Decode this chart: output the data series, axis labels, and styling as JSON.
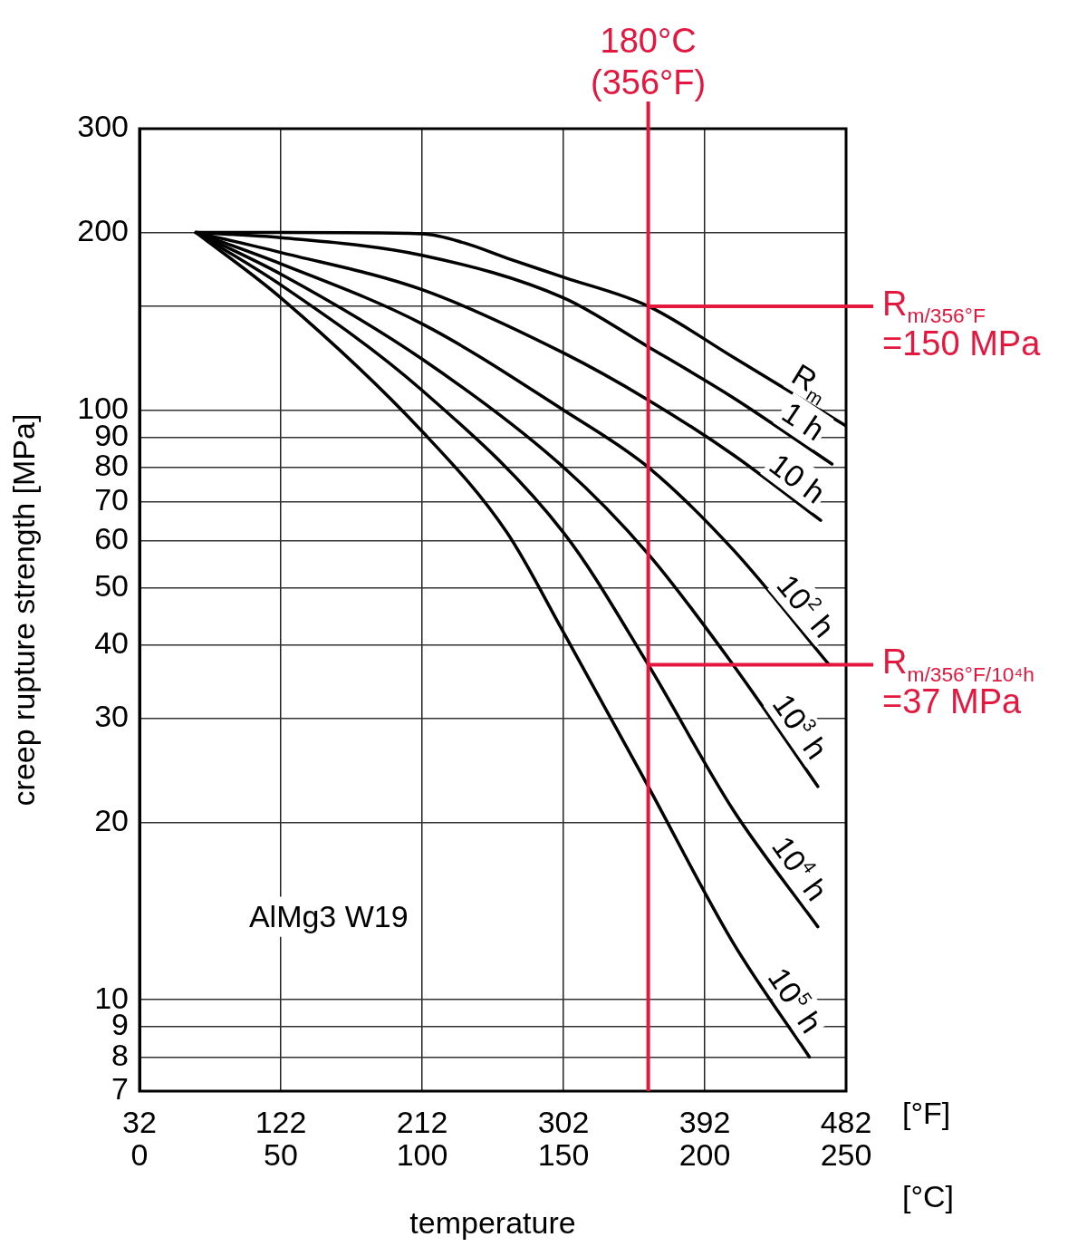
{
  "chart_data": {
    "type": "line",
    "xlabel": "temperature",
    "ylabel": "creep rupture strength [MPa]",
    "x2label": "[°F]",
    "annotations": [
      "AlMg3 W19",
      "[°C]"
    ],
    "xlim": [
      0,
      250
    ],
    "xticks": [
      0,
      50,
      100,
      150,
      200,
      250
    ],
    "x2lim": [
      32,
      482
    ],
    "x2ticks": [
      32,
      122,
      212,
      302,
      392,
      482
    ],
    "ylim": [
      7,
      300
    ],
    "log": "y",
    "yticks": [
      7,
      8,
      9,
      10,
      20,
      30,
      40,
      50,
      60,
      70,
      80,
      90,
      100,
      {
        "value": 150,
        "label": null
      },
      200,
      300
    ],
    "grid": true,
    "legend": false,
    "marker": "none",
    "line_style": "solid",
    "series": [
      {
        "name": "R$_{m}$",
        "color": "#000000",
        "x": [
          20,
          50,
          100,
          115,
          130,
          150,
          180,
          210,
          250
        ],
        "values": [
          200,
          200,
          199,
          192,
          181,
          168,
          150,
          123,
          94
        ]
      },
      {
        "name": "1 h",
        "color": "#000000",
        "x": [
          20,
          50,
          100,
          150,
          180,
          210,
          245
        ],
        "values": [
          200,
          196,
          183,
          155,
          128,
          105,
          81
        ]
      },
      {
        "name": "10 h",
        "color": "#000000",
        "x": [
          20,
          50,
          100,
          150,
          180,
          210,
          241
        ],
        "values": [
          200,
          185,
          160,
          125,
          104,
          84,
          65
        ]
      },
      {
        "name": "10$^{2}$ h",
        "color": "#000000",
        "x": [
          20,
          50,
          100,
          150,
          180,
          210,
          244
        ],
        "values": [
          200,
          177,
          140,
          100,
          80,
          58,
          37
        ]
      },
      {
        "name": "10$^{3}$ h",
        "color": "#000000",
        "x": [
          20,
          50,
          100,
          150,
          180,
          210,
          240
        ],
        "values": [
          200,
          170,
          122,
          80,
          57,
          37,
          23
        ]
      },
      {
        "name": "10$^{4}$ h",
        "color": "#000000",
        "x": [
          20,
          50,
          100,
          150,
          180,
          210,
          240
        ],
        "values": [
          200,
          163,
          108,
          62,
          37,
          21,
          13.3
        ]
      },
      {
        "name": "10$^{5}$ h",
        "color": "#000000",
        "x": [
          20,
          50,
          100,
          130,
          150,
          180,
          210,
          237
        ],
        "values": [
          200,
          155,
          92,
          62,
          42,
          23,
          12.5,
          8
        ]
      }
    ],
    "ref_lines": [
      {
        "axis": "x",
        "value": 180,
        "label": "180°C\n(356°F)",
        "color": "#e4173e"
      },
      {
        "axis": "y",
        "value": 150,
        "label": "R$_{m/356°F}$\n=150 MPa",
        "color": "#e4173e"
      },
      {
        "axis": "y",
        "value": 37,
        "label": "R$_{m/356°F/10⁴h}$\n=37 MPa",
        "color": "#e4173e"
      }
    ]
  }
}
